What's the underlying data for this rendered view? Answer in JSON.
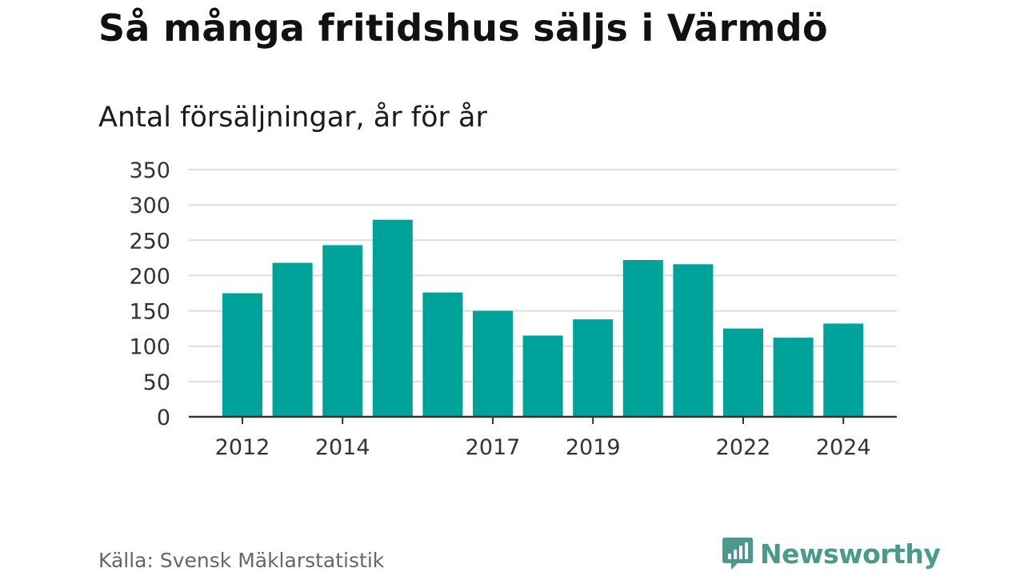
{
  "title": "Så många fritidshus säljs i Värmdö",
  "subtitle": "Antal försäljningar, år för år",
  "source": "Källa: Svensk Mäklarstatistik",
  "brand": "Newsworthy",
  "colors": {
    "bar": "#00a39a",
    "grid": "#dddddd",
    "axis": "#333333",
    "brand": "#4a9a8c"
  },
  "chart_data": {
    "type": "bar",
    "categories": [
      "2012",
      "2013",
      "2014",
      "2015",
      "2016",
      "2017",
      "2018",
      "2019",
      "2020",
      "2021",
      "2022",
      "2023",
      "2024"
    ],
    "values": [
      175,
      218,
      243,
      279,
      176,
      150,
      115,
      138,
      222,
      216,
      125,
      112,
      132
    ],
    "x_tick_labels": [
      "2012",
      "2014",
      "2017",
      "2019",
      "2022",
      "2024"
    ],
    "y_ticks": [
      0,
      50,
      100,
      150,
      200,
      250,
      300,
      350
    ],
    "ylim": [
      0,
      350
    ],
    "grid": true,
    "xlabel": "",
    "ylabel": ""
  }
}
